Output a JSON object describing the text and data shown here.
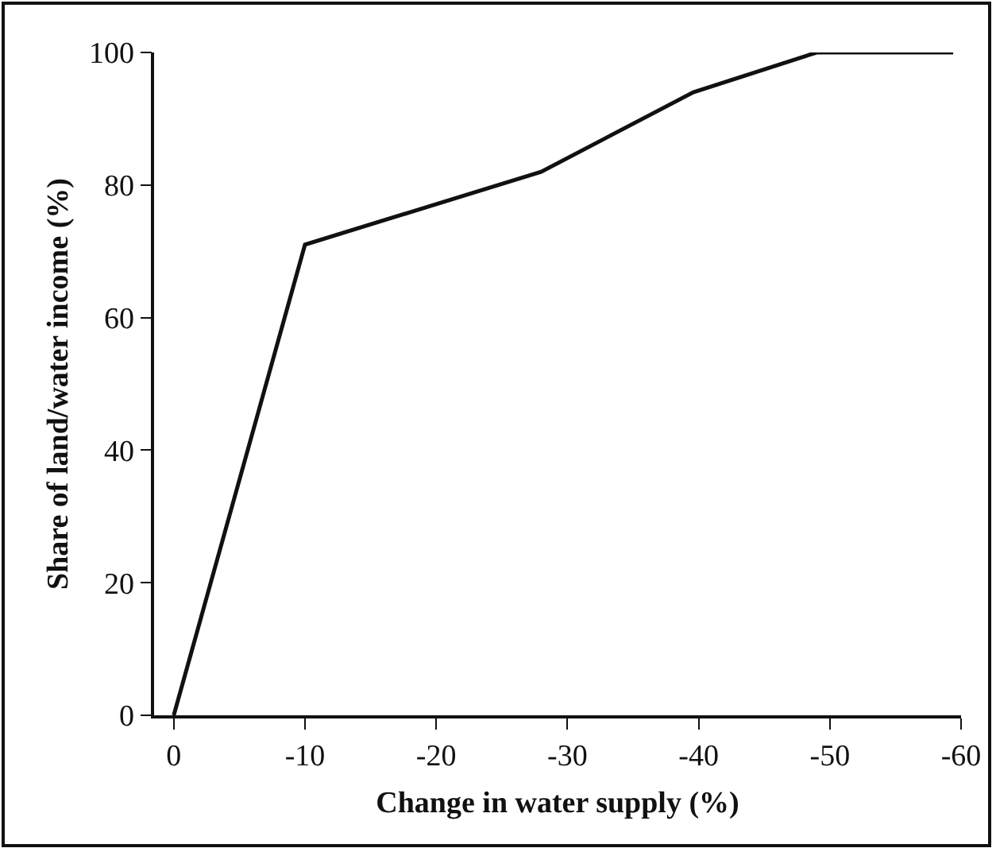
{
  "chart_data": {
    "type": "line",
    "xlabel": "Change in water supply (%)",
    "ylabel": "Share of land/water income (%)",
    "x": [
      0,
      -10,
      -28,
      -39.6,
      -49,
      -59.4
    ],
    "series": [
      {
        "color": "#111111",
        "values": [
          0,
          71,
          82,
          94,
          100,
          100
        ]
      }
    ],
    "xlim": [
      1.5,
      -60
    ],
    "xticks": [
      {
        "value": 0,
        "label": "0"
      },
      -10,
      -20,
      -30,
      -40,
      -50,
      -60
    ],
    "ylim": [
      0,
      100
    ],
    "yticks": [
      0,
      20,
      40,
      60,
      80,
      100
    ],
    "grid": false,
    "marker": "none",
    "line_style": "solid"
  }
}
